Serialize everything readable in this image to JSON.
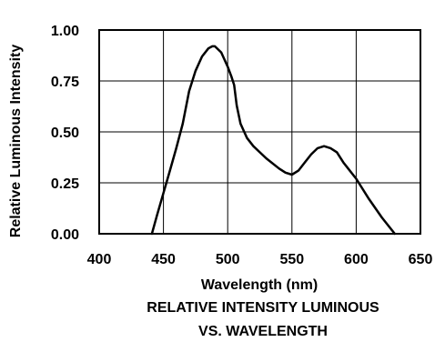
{
  "chart_data": {
    "type": "line",
    "title_lines": [
      "RELATIVE INTENSITY LUMINOUS",
      "VS. WAVELENGTH"
    ],
    "xlabel": "Wavelength (nm)",
    "ylabel": "Relative Luminous Intensity",
    "xlim": [
      400,
      650
    ],
    "ylim": [
      0,
      1
    ],
    "x_ticks": [
      400,
      450,
      500,
      550,
      600,
      650
    ],
    "y_ticks": [
      0,
      0.25,
      0.5,
      0.75,
      1.0
    ],
    "x_tick_labels": [
      "400",
      "450",
      "500",
      "550",
      "600",
      "650"
    ],
    "y_tick_labels": [
      "0.00",
      "0.25",
      "0.50",
      "0.75",
      "1.00"
    ],
    "grid": true,
    "line_color": "#000000",
    "series": [
      {
        "x": [
          441,
          445,
          450,
          455,
          460,
          465,
          470,
          475,
          480,
          485,
          488,
          490,
          495,
          500,
          503,
          505,
          507,
          510,
          515,
          520,
          530,
          540,
          545,
          550,
          555,
          560,
          565,
          570,
          575,
          580,
          585,
          590,
          600,
          610,
          620,
          630
        ],
        "y": [
          0.0,
          0.09,
          0.2,
          0.31,
          0.42,
          0.54,
          0.7,
          0.8,
          0.87,
          0.91,
          0.92,
          0.92,
          0.89,
          0.82,
          0.77,
          0.73,
          0.63,
          0.54,
          0.47,
          0.43,
          0.37,
          0.32,
          0.3,
          0.29,
          0.31,
          0.35,
          0.39,
          0.42,
          0.43,
          0.42,
          0.4,
          0.35,
          0.27,
          0.17,
          0.08,
          0.0
        ]
      }
    ]
  }
}
